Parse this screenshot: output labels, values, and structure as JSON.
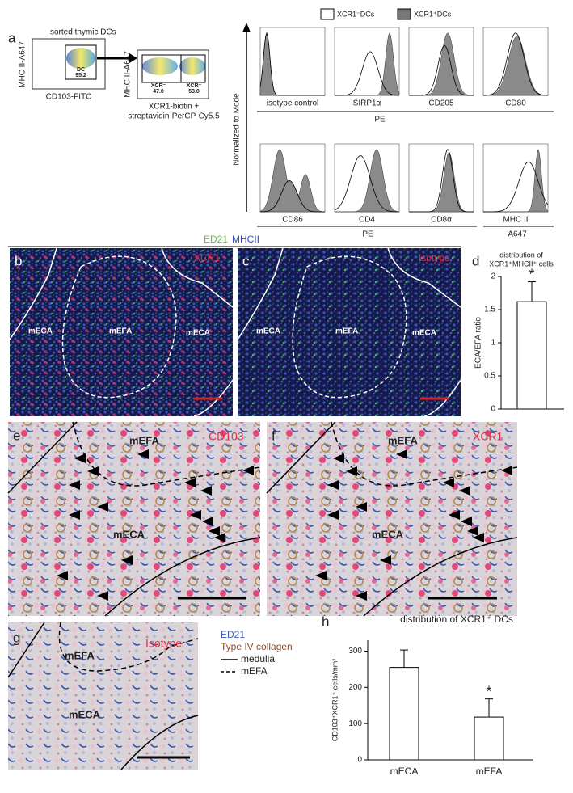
{
  "panels": {
    "a": {
      "letter": "a",
      "sorted": "sorted thymic DCs",
      "ylabel1": "MHC II-A647",
      "xlabel1": "CD103-FITC",
      "gate": "DC",
      "gate_pct": "95.2",
      "ylabel2": "MHC II-A647",
      "neg": "XCR⁻",
      "neg_pct": "47.0",
      "pos": "XCR⁺",
      "pos_pct": "53.0",
      "xlabel2a": "XCR1-biotin +",
      "xlabel2b": "streptavidin-PerCP-Cy5.5",
      "legend_pos": "XCR1⁺DCs",
      "legend_neg": "XCR1⁻DCs",
      "hist_ylabel": "Normalized to Mode",
      "row1": [
        "isotype control",
        "SIRP1α",
        "CD205",
        "CD80"
      ],
      "row1_channel": "PE",
      "row2": [
        "CD86",
        "CD4",
        "CD8α",
        "MHC II"
      ],
      "row2_channel": "PE",
      "row2_channel2": "A647"
    },
    "bc": {
      "stain1": "ED21",
      "stain2": "MHCII",
      "b": "b",
      "b_marker": "XCR1",
      "c": "c",
      "c_marker": "Isotype",
      "eca": "mECA",
      "efa": "mEFA"
    },
    "d": {
      "letter": "d"
    },
    "e": {
      "letter": "e",
      "marker": "CD103",
      "efa": "mEFA",
      "eca": "mECA"
    },
    "f": {
      "letter": "f",
      "marker": "XCR1",
      "efa": "mEFA",
      "eca": "mECA"
    },
    "g": {
      "letter": "g",
      "marker": "Isotype",
      "efa": "mEFA",
      "eca": "mECA"
    },
    "legend": {
      "ed21": "ED21",
      "collagen": "Type IV collagen",
      "medulla": "medulla",
      "mefa": "mEFA"
    },
    "h": {
      "letter": "h"
    }
  },
  "chart_data": [
    {
      "type": "bar",
      "title": [
        "distribution of",
        "XCR1⁺MHCII⁺ cells"
      ],
      "ylabel": "ECA/EFA ratio",
      "categories": [
        null
      ],
      "values": [
        1.62
      ],
      "errors": [
        0.3
      ],
      "annotations": [
        "*"
      ],
      "color": "#ffffff",
      "ylim": [
        0,
        2
      ],
      "yticks": [
        0,
        0.5,
        1,
        1.5,
        2
      ]
    },
    {
      "type": "bar",
      "title": "distribution of XCR1⁺ DCs",
      "ylabel": "CD103⁺XCR1⁺ cells/mm²",
      "categories": [
        "mECA",
        "mEFA"
      ],
      "values": [
        255,
        118
      ],
      "errors": [
        48,
        50
      ],
      "annotations": [
        null,
        "*"
      ],
      "color": "#ffffff",
      "ylim": [
        0,
        330
      ],
      "yticks": [
        0,
        100,
        200,
        300
      ]
    }
  ]
}
